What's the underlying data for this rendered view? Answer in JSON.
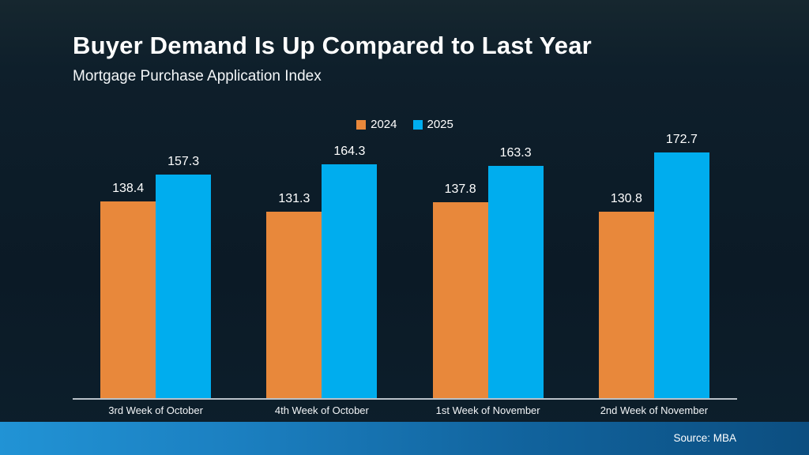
{
  "chart_data": {
    "type": "bar",
    "title": "Buyer Demand Is Up Compared to Last Year",
    "subtitle": "Mortgage Purchase Application Index",
    "categories": [
      "3rd Week of October",
      "4th Week of October",
      "1st Week of November",
      "2nd Week of November"
    ],
    "series": [
      {
        "name": "2024",
        "color": "#E8883B",
        "values": [
          138.4,
          131.3,
          137.8,
          130.8
        ]
      },
      {
        "name": "2025",
        "color": "#00ADEE",
        "values": [
          157.3,
          164.3,
          163.3,
          172.7
        ]
      }
    ],
    "ylim": [
      0,
      188
    ],
    "grid": false,
    "legend_position": "top-center",
    "value_labels": true
  },
  "footer": {
    "source_label": "Source: MBA"
  },
  "colors": {
    "background": "#0b1a26",
    "accent_orange": "#E8883B",
    "accent_blue": "#00ADEE",
    "axis_line": "#b9c1c9",
    "band_left": "#2193d5",
    "band_right": "#0c4e80",
    "text": "#ffffff"
  }
}
